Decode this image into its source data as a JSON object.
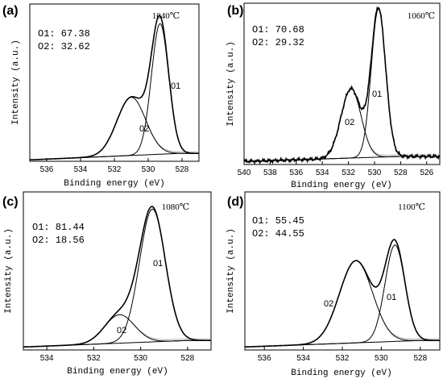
{
  "chart_data": [
    {
      "panel": "(a)",
      "type": "line",
      "temperature": "1040℃",
      "ratios": [
        "O1: 67.38",
        "O2: 32.62"
      ],
      "xlabel": "Binding energy (eV)",
      "ylabel": "Intensity (a.u.)",
      "xlim": [
        537,
        527
      ],
      "xticks": [
        536,
        534,
        532,
        530,
        528
      ],
      "peaks": [
        {
          "name": "O1",
          "center": 529.3,
          "fwhm": 1.2,
          "height": 0.83
        },
        {
          "name": "O2",
          "center": 531.0,
          "fwhm": 2.0,
          "height": 0.37
        }
      ],
      "background": {
        "low_be": 528.2,
        "high_be": 536.8,
        "low_level": 0.05,
        "high_level": 0.01
      },
      "colors": {
        "envelope": "#000000",
        "components": "#000000",
        "background_tail": "#b4b4b4"
      }
    },
    {
      "panel": "(b)",
      "type": "line",
      "temperature": "1060℃",
      "ratios": [
        "O1: 70.68",
        "O2: 29.32"
      ],
      "xlabel": "Binding energy (eV)",
      "ylabel": "Intensity (a.u.)",
      "xlim": [
        540,
        525
      ],
      "xticks": [
        540,
        538,
        536,
        534,
        532,
        530,
        528,
        526
      ],
      "peaks": [
        {
          "name": "O1",
          "center": 529.7,
          "fwhm": 1.3,
          "height": 0.92
        },
        {
          "name": "O2",
          "center": 531.8,
          "fwhm": 1.8,
          "height": 0.43
        }
      ],
      "background": {
        "low_be": 528.0,
        "high_be": 539.5,
        "low_level": 0.05,
        "high_level": 0.02
      },
      "colors": {
        "envelope": "#000000",
        "components": "#000000",
        "background_tail": "#b4b4b4"
      }
    },
    {
      "panel": "(c)",
      "type": "line",
      "temperature": "1080℃",
      "ratios": [
        "O1: 81.44",
        "O2: 18.56"
      ],
      "xlabel": "Binding energy (eV)",
      "ylabel": "Intensity (a.u.)",
      "xlim": [
        535,
        527
      ],
      "xticks": [
        534,
        532,
        530,
        528
      ],
      "peaks": [
        {
          "name": "O1",
          "center": 529.5,
          "fwhm": 1.3,
          "height": 0.84
        },
        {
          "name": "O2",
          "center": 530.9,
          "fwhm": 1.5,
          "height": 0.18
        }
      ],
      "background": {
        "low_be": 528.0,
        "high_be": 534.8,
        "low_level": 0.06,
        "high_level": 0.02
      },
      "colors": {
        "envelope": "#000000",
        "components": "#000000",
        "background_tail": "#b4b4b4"
      }
    },
    {
      "panel": "(d)",
      "type": "line",
      "temperature": "1100℃",
      "ratios": [
        "O1: 55.45",
        "O2: 44.55"
      ],
      "xlabel": "Binding energy (eV)",
      "ylabel": "Intensity (a.u.)",
      "xlim": [
        537,
        527
      ],
      "xticks": [
        536,
        534,
        532,
        530,
        528
      ],
      "peaks": [
        {
          "name": "O1",
          "center": 529.3,
          "fwhm": 1.2,
          "height": 0.61
        },
        {
          "name": "O2",
          "center": 531.3,
          "fwhm": 2.0,
          "height": 0.52
        }
      ],
      "background": {
        "low_be": 528.0,
        "high_be": 536.8,
        "low_level": 0.06,
        "high_level": 0.02
      },
      "colors": {
        "envelope": "#000000",
        "components": "#000000",
        "background_tail": "#b4b4b4"
      }
    }
  ]
}
